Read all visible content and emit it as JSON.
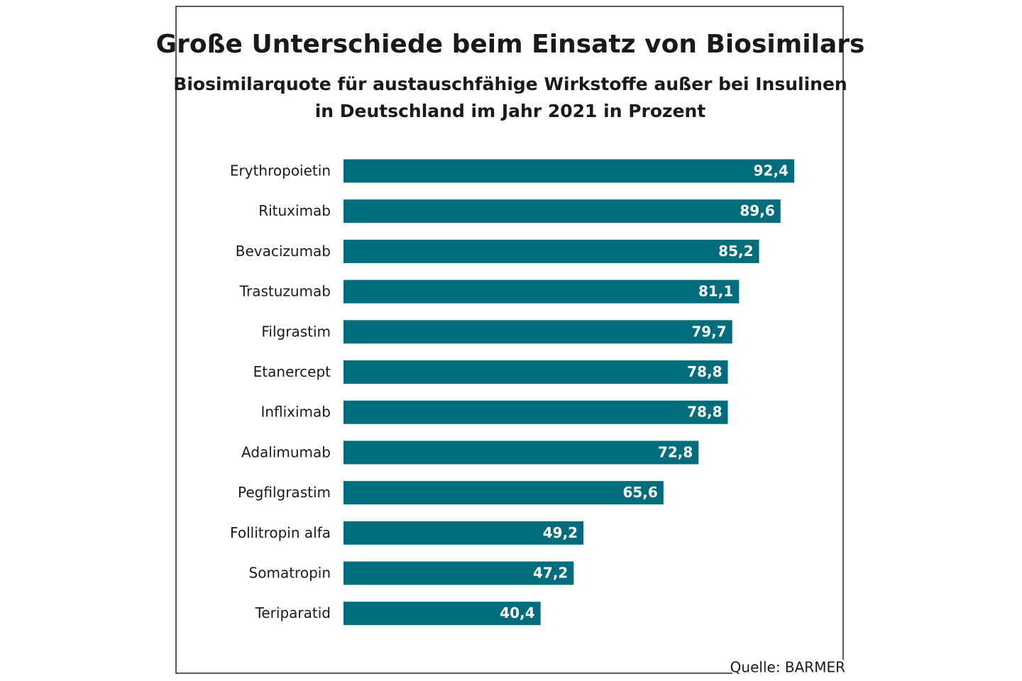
{
  "chart_data": {
    "type": "bar",
    "orientation": "horizontal",
    "title": "Große Unterschiede beim Einsatz von Biosimilars",
    "subtitle": [
      "Biosimilarquote für austauschfähige Wirkstoffe außer bei Insulinen",
      "in Deutschland im Jahr 2021 in Prozent"
    ],
    "categories": [
      "Erythropoietin",
      "Rituximab",
      "Bevacizumab",
      "Trastuzumab",
      "Filgrastim",
      "Etanercept",
      "Infliximab",
      "Adalimumab",
      "Pegfilgrastim",
      "Follitropin alfa",
      "Somatropin",
      "Teriparatid"
    ],
    "values": [
      92.4,
      89.6,
      85.2,
      81.1,
      79.7,
      78.8,
      78.8,
      72.8,
      65.6,
      49.2,
      47.2,
      40.4
    ],
    "value_labels": [
      "92,4",
      "89,6",
      "85,2",
      "81,1",
      "79,7",
      "78,8",
      "78,8",
      "72,8",
      "65,6",
      "49,2",
      "47,2",
      "40,4"
    ],
    "color": "#006d7d",
    "source": "Quelle: BARMER"
  }
}
